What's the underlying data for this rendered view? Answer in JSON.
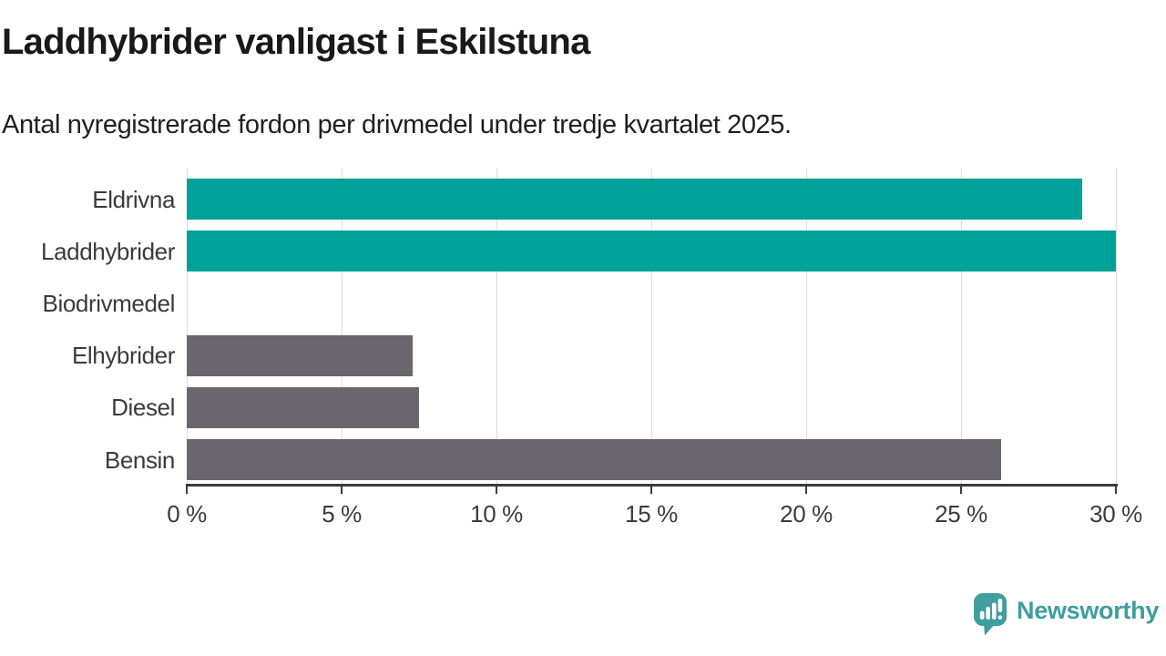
{
  "header": {
    "title": "Laddhybrider vanligast i Eskilstuna",
    "subtitle": "Antal nyregistrerade fordon per drivmedel under tredje kvartalet 2025."
  },
  "chart_data": {
    "type": "bar",
    "orientation": "horizontal",
    "title": "Laddhybrider vanligast i Eskilstuna",
    "subtitle": "Antal nyregistrerade fordon per drivmedel under tredje kvartalet 2025.",
    "categories": [
      "Eldrivna",
      "Laddhybrider",
      "Biodrivmedel",
      "Elhybrider",
      "Diesel",
      "Bensin"
    ],
    "values": [
      28.9,
      30,
      0,
      7.3,
      7.5,
      26.3
    ],
    "unit": "%",
    "series_colors": [
      "#00a198",
      "#00a198",
      "#00a198",
      "#6a666d",
      "#6a666d",
      "#6a666d"
    ],
    "xlabel": "",
    "ylabel": "",
    "xlim": [
      0,
      30
    ],
    "x_tick_values": [
      0,
      5,
      10,
      15,
      20,
      25,
      30
    ],
    "x_tick_labels": [
      "0 %",
      "5 %",
      "10 %",
      "15 %",
      "20 %",
      "25 %",
      "30 %"
    ],
    "grid": "vertical-only",
    "legend": "none"
  },
  "footer": {
    "brand": "Newsworthy"
  },
  "colors": {
    "accent_teal": "#00a198",
    "neutral_gray": "#6a666d",
    "logo_teal": "#3f9e9e",
    "gridline": "#dcdcdc",
    "axis": "#3b3b3b",
    "label_text": "#3b3b3b",
    "title_text": "#191919",
    "background": "#ffffff"
  }
}
